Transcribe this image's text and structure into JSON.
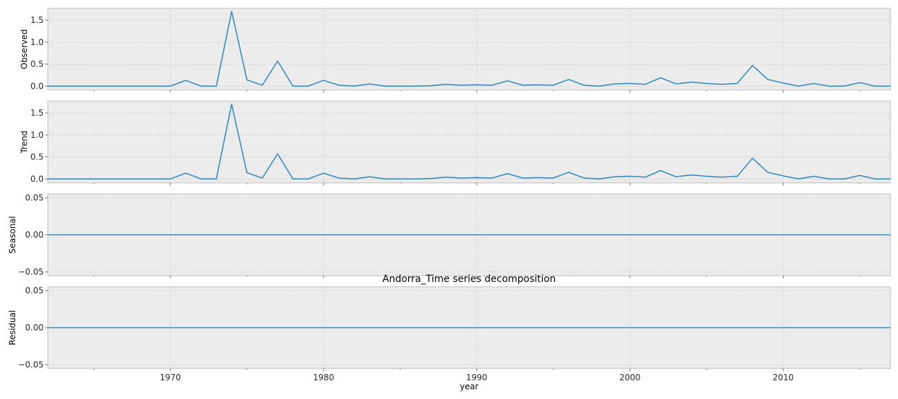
{
  "chart_data": {
    "type": "line",
    "title": "Andorra_Time series decomposition",
    "xlabel": "year",
    "x": [
      1962,
      1963,
      1964,
      1965,
      1966,
      1967,
      1968,
      1969,
      1970,
      1971,
      1972,
      1973,
      1974,
      1975,
      1976,
      1977,
      1978,
      1979,
      1980,
      1981,
      1982,
      1983,
      1984,
      1985,
      1986,
      1987,
      1988,
      1989,
      1990,
      1991,
      1992,
      1993,
      1994,
      1995,
      1996,
      1997,
      1998,
      1999,
      2000,
      2001,
      2002,
      2003,
      2004,
      2005,
      2006,
      2007,
      2008,
      2009,
      2010,
      2011,
      2012,
      2013,
      2014,
      2015,
      2016,
      2017
    ],
    "xlim": [
      1962,
      2017
    ],
    "x_ticks": [
      "1970",
      "1980",
      "1990",
      "2000",
      "2010"
    ],
    "grid": true,
    "line_color": "#348abd",
    "panels": [
      {
        "ylabel": "Observed",
        "ylim": [
          -0.09,
          1.77
        ],
        "yticks": [
          "0.0",
          "0.5",
          "1.0",
          "1.5"
        ],
        "values": [
          0,
          0,
          0,
          0,
          0,
          0,
          0,
          0,
          0,
          0.13,
          0,
          0,
          1.7,
          0.14,
          0.02,
          0.57,
          0,
          0,
          0.13,
          0.02,
          0,
          0.05,
          0,
          0,
          0,
          0.01,
          0.04,
          0.02,
          0.03,
          0.02,
          0.12,
          0.02,
          0.03,
          0.02,
          0.15,
          0.02,
          0,
          0.05,
          0.06,
          0.04,
          0.19,
          0.05,
          0.09,
          0.06,
          0.04,
          0.06,
          0.47,
          0.15,
          0.07,
          0,
          0.06,
          0,
          0,
          0.08,
          0,
          0
        ]
      },
      {
        "ylabel": "Trend",
        "ylim": [
          -0.09,
          1.77
        ],
        "yticks": [
          "0.0",
          "0.5",
          "1.0",
          "1.5"
        ],
        "values": [
          0,
          0,
          0,
          0,
          0,
          0,
          0,
          0,
          0,
          0.13,
          0,
          0,
          1.7,
          0.14,
          0.02,
          0.57,
          0,
          0,
          0.13,
          0.02,
          0,
          0.05,
          0,
          0,
          0,
          0.01,
          0.04,
          0.02,
          0.03,
          0.02,
          0.12,
          0.02,
          0.03,
          0.02,
          0.15,
          0.02,
          0,
          0.05,
          0.06,
          0.04,
          0.19,
          0.05,
          0.09,
          0.06,
          0.04,
          0.06,
          0.47,
          0.15,
          0.07,
          0,
          0.06,
          0,
          0,
          0.08,
          0,
          0
        ]
      },
      {
        "ylabel": "Seasonal",
        "ylim": [
          -0.055,
          0.055
        ],
        "yticks": [
          "−0.05",
          "0.00",
          "0.05"
        ],
        "values": [
          0,
          0,
          0,
          0,
          0,
          0,
          0,
          0,
          0,
          0,
          0,
          0,
          0,
          0,
          0,
          0,
          0,
          0,
          0,
          0,
          0,
          0,
          0,
          0,
          0,
          0,
          0,
          0,
          0,
          0,
          0,
          0,
          0,
          0,
          0,
          0,
          0,
          0,
          0,
          0,
          0,
          0,
          0,
          0,
          0,
          0,
          0,
          0,
          0,
          0,
          0,
          0,
          0,
          0,
          0,
          0
        ]
      },
      {
        "ylabel": "Residual",
        "ylim": [
          -0.055,
          0.055
        ],
        "yticks": [
          "−0.05",
          "0.00",
          "0.05"
        ],
        "values": [
          0,
          0,
          0,
          0,
          0,
          0,
          0,
          0,
          0,
          0,
          0,
          0,
          0,
          0,
          0,
          0,
          0,
          0,
          0,
          0,
          0,
          0,
          0,
          0,
          0,
          0,
          0,
          0,
          0,
          0,
          0,
          0,
          0,
          0,
          0,
          0,
          0,
          0,
          0,
          0,
          0,
          0,
          0,
          0,
          0,
          0,
          0,
          0,
          0,
          0,
          0,
          0,
          0,
          0,
          0,
          0
        ]
      }
    ]
  }
}
